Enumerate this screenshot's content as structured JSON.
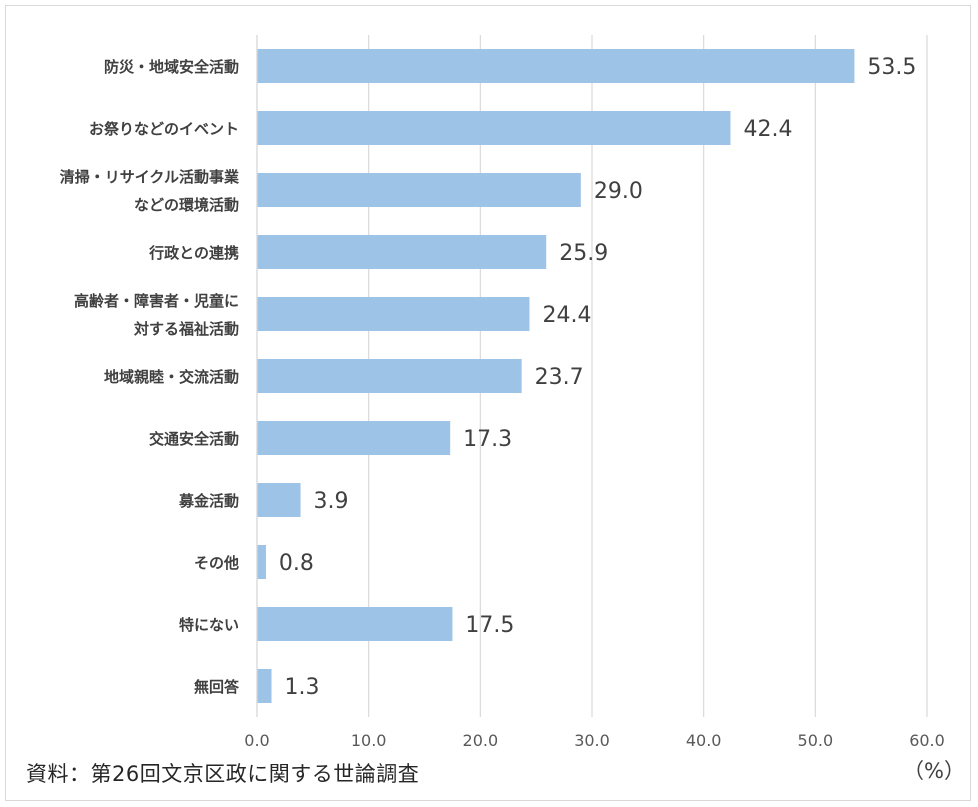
{
  "chart_data": {
    "type": "bar",
    "orientation": "horizontal",
    "categories": [
      [
        "防災・地域安全活動"
      ],
      [
        "お祭りなどのイベント"
      ],
      [
        "清掃・リサイクル活動事業",
        "などの環境活動"
      ],
      [
        "行政との連携"
      ],
      [
        "高齢者・障害者・児童に",
        "対する福祉活動"
      ],
      [
        "地域親睦・交流活動"
      ],
      [
        "交通安全活動"
      ],
      [
        "募金活動"
      ],
      [
        "その他"
      ],
      [
        "特にない"
      ],
      [
        "無回答"
      ]
    ],
    "values": [
      53.5,
      42.4,
      29.0,
      25.9,
      24.4,
      23.7,
      17.3,
      3.9,
      0.8,
      17.5,
      1.3
    ],
    "value_labels": [
      "53.5",
      "42.4",
      "29.0",
      "25.9",
      "24.4",
      "23.7",
      "17.3",
      "3.9",
      "0.8",
      "17.5",
      "1.3"
    ],
    "xlim": [
      0,
      60
    ],
    "xticks": [
      "0.0",
      "10.0",
      "20.0",
      "30.0",
      "40.0",
      "50.0",
      "60.0"
    ],
    "xtick_values": [
      0,
      10,
      20,
      30,
      40,
      50,
      60
    ],
    "unit": "（%）",
    "grid": "vertical",
    "bar_color": "#9dc3e6",
    "grid_color": "#d9d9d9",
    "source": "資料：第26回文京区政に関する世論調査"
  }
}
